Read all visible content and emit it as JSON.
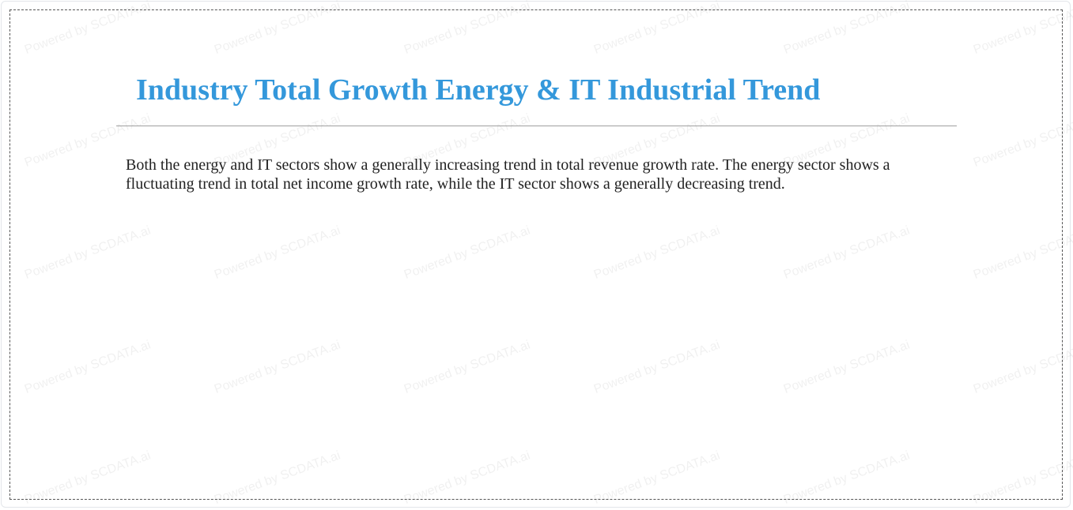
{
  "watermark": "Powered by SCDATA.ai",
  "title": "Industry Total Growth Energy & IT Industrial Trend",
  "summary": "Both the energy and IT sectors show a generally increasing trend in total revenue growth rate. The energy sector shows a fluctuating trend in total net income growth rate, while the IT sector shows a generally decreasing trend.",
  "colors": {
    "title": "#3498db",
    "text": "#222222"
  }
}
